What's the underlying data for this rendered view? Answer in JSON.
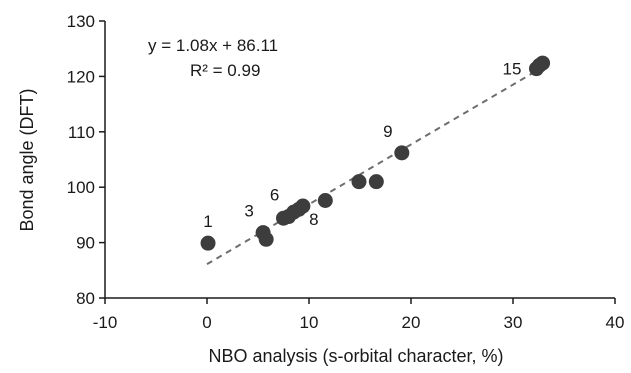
{
  "chart_data": {
    "type": "scatter",
    "title": "",
    "xlabel": "NBO analysis (s-orbital character, %)",
    "ylabel": "Bond angle (DFT)",
    "xlim": [
      -10,
      40
    ],
    "ylim": [
      80,
      130
    ],
    "xticks": [
      -10,
      0,
      10,
      20,
      30,
      40
    ],
    "yticks": [
      80,
      90,
      100,
      110,
      120,
      130
    ],
    "grid": false,
    "legend": "none",
    "colors": {
      "point": "#3d3d3d",
      "trendline": "#6e6e6e",
      "axis": "#1a1a1a"
    },
    "series": [
      {
        "points": [
          {
            "x": 0.1,
            "y": 89.9
          },
          {
            "x": 5.5,
            "y": 91.8
          },
          {
            "x": 5.8,
            "y": 90.6
          },
          {
            "x": 7.5,
            "y": 94.4
          },
          {
            "x": 8.0,
            "y": 94.7
          },
          {
            "x": 8.5,
            "y": 95.5
          },
          {
            "x": 9.0,
            "y": 96.0
          },
          {
            "x": 9.4,
            "y": 96.6
          },
          {
            "x": 11.6,
            "y": 97.6
          },
          {
            "x": 14.9,
            "y": 101.0
          },
          {
            "x": 16.6,
            "y": 101.0
          },
          {
            "x": 19.1,
            "y": 106.2
          },
          {
            "x": 32.3,
            "y": 121.4
          },
          {
            "x": 32.6,
            "y": 122.0
          },
          {
            "x": 32.9,
            "y": 122.4
          }
        ]
      }
    ],
    "point_labels": [
      {
        "text": "1",
        "x": 0.1,
        "y": 89.9,
        "position": "above"
      },
      {
        "text": "3",
        "x": 5.5,
        "y": 91.8,
        "position": "above-left"
      },
      {
        "text": "6",
        "x": 8.0,
        "y": 94.7,
        "position": "above-left"
      },
      {
        "text": "8",
        "x": 9.4,
        "y": 96.6,
        "position": "below-right"
      },
      {
        "text": "9",
        "x": 19.1,
        "y": 106.2,
        "position": "above-left"
      },
      {
        "text": "15",
        "x": 32.3,
        "y": 121.4,
        "position": "left"
      }
    ],
    "trendline": {
      "slope": 1.08,
      "intercept": 86.11,
      "x_range": [
        0,
        32.9
      ],
      "style": "dashed"
    },
    "annotations": {
      "equation": "y = 1.08x + 86.11",
      "r_squared": "R² = 0.99"
    }
  }
}
